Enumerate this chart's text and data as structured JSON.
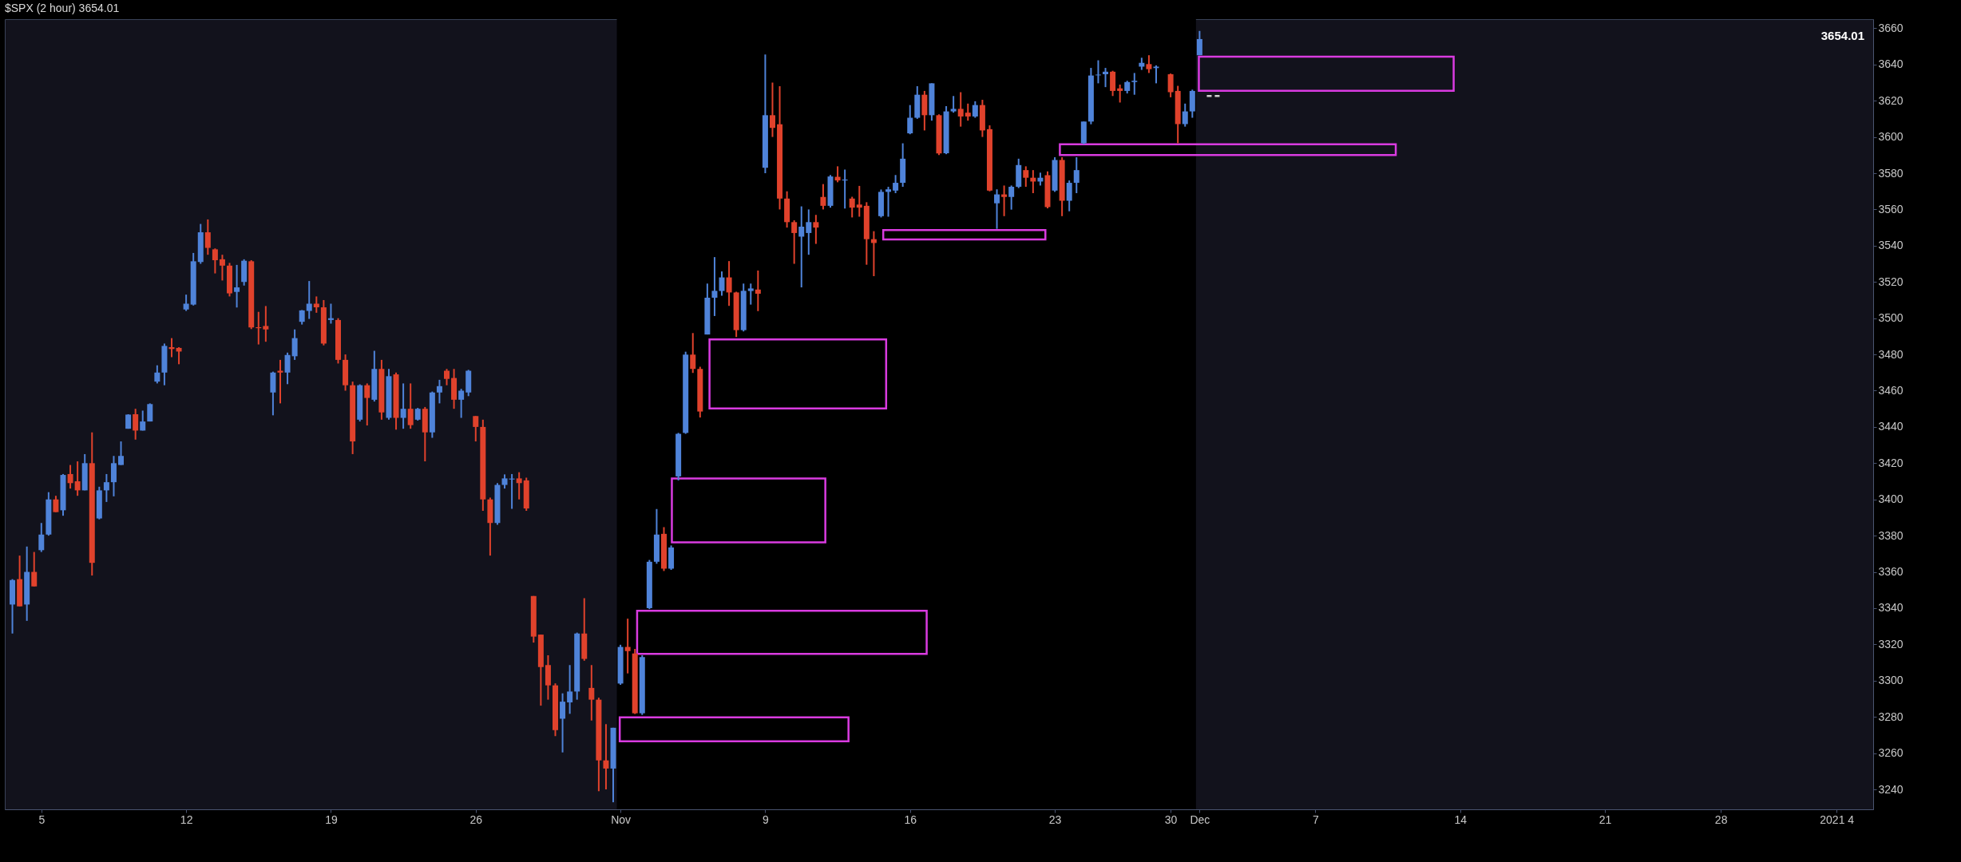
{
  "chart_data": {
    "type": "candlestick",
    "title": "$SPX (2 hour) 3654.01",
    "categories": [
      null,
      null,
      null,
      null,
      "5",
      null,
      null,
      null,
      null,
      null,
      null,
      null,
      null,
      null,
      null,
      null,
      null,
      null,
      null,
      null,
      null,
      null,
      null,
      null,
      "12",
      null,
      null,
      null,
      null,
      null,
      null,
      null,
      null,
      null,
      null,
      null,
      null,
      null,
      null,
      null,
      null,
      null,
      null,
      null,
      "19",
      null,
      null,
      null,
      null,
      null,
      null,
      null,
      null,
      null,
      null,
      null,
      null,
      null,
      null,
      null,
      null,
      null,
      null,
      null,
      "26",
      null,
      null,
      null,
      null,
      null,
      null,
      null,
      null,
      null,
      null,
      null,
      null,
      null,
      null,
      null,
      null,
      null,
      null,
      null,
      "Nov",
      null,
      null,
      null,
      null,
      null,
      null,
      null,
      null,
      null,
      null,
      null,
      null,
      null,
      null,
      null,
      null,
      null,
      null,
      null,
      "9",
      null,
      null,
      null,
      null,
      null,
      null,
      null,
      null,
      null,
      null,
      null,
      null,
      null,
      null,
      null,
      null,
      null,
      null,
      null,
      "16",
      null,
      null,
      null,
      null,
      null,
      null,
      null,
      null,
      null,
      null,
      null,
      null,
      null,
      null,
      null,
      null,
      null,
      null,
      null,
      "23",
      null,
      null,
      null,
      null,
      null,
      null,
      null,
      null,
      null,
      null,
      null,
      null,
      null,
      null,
      null,
      "30",
      null,
      null,
      null,
      "Dec",
      null,
      null,
      null,
      null,
      null,
      null,
      null,
      null,
      null,
      null,
      null,
      null,
      null,
      null,
      null,
      "7",
      null,
      null,
      null,
      null,
      null,
      null,
      null,
      null,
      null,
      null,
      null,
      null,
      null,
      null,
      null,
      null,
      null,
      null,
      null,
      "14",
      null,
      null,
      null,
      null,
      null,
      null,
      null,
      null,
      null,
      null,
      null,
      null,
      null,
      null,
      null,
      null,
      null,
      null,
      null,
      "21",
      null,
      null,
      null,
      null,
      null,
      null,
      null,
      null,
      null,
      null,
      null,
      null,
      null,
      null,
      null,
      "28",
      null,
      null,
      null,
      null,
      null,
      null,
      null,
      null,
      null,
      null,
      null,
      null,
      null,
      null,
      null,
      "2021 4",
      null,
      null,
      null,
      null
    ],
    "ylim": [
      3229,
      3665
    ],
    "yticks": [
      3240,
      3260,
      3280,
      3300,
      3320,
      3340,
      3360,
      3380,
      3400,
      3420,
      3440,
      3460,
      3480,
      3500,
      3520,
      3540,
      3560,
      3580,
      3600,
      3620,
      3640,
      3660
    ],
    "bands": [
      {
        "axis": "x",
        "from": "Nov",
        "to": "Dec",
        "color": "#000000"
      }
    ],
    "annotations": [
      "3654.01"
    ],
    "series": [
      {
        "type": "line",
        "color": "#d0d0d0",
        "line_style": "dashed",
        "values": [
          null,
          null,
          null,
          null,
          null,
          null,
          null,
          null,
          null,
          null,
          null,
          null,
          null,
          null,
          null,
          null,
          null,
          null,
          null,
          null,
          null,
          null,
          null,
          null,
          null,
          null,
          null,
          null,
          null,
          null,
          null,
          null,
          null,
          null,
          null,
          null,
          null,
          null,
          null,
          null,
          null,
          null,
          null,
          null,
          null,
          null,
          null,
          null,
          null,
          null,
          null,
          null,
          null,
          null,
          null,
          null,
          null,
          null,
          null,
          null,
          null,
          null,
          null,
          null,
          null,
          null,
          null,
          null,
          null,
          null,
          null,
          null,
          null,
          null,
          null,
          null,
          null,
          null,
          null,
          null,
          null,
          null,
          null,
          null,
          null,
          null,
          null,
          null,
          null,
          null,
          null,
          null,
          null,
          null,
          null,
          null,
          null,
          null,
          null,
          null,
          null,
          null,
          null,
          null,
          null,
          null,
          null,
          null,
          null,
          null,
          null,
          null,
          null,
          null,
          null,
          null,
          null,
          null,
          null,
          null,
          null,
          null,
          null,
          null,
          null,
          null,
          null,
          null,
          null,
          null,
          null,
          null,
          null,
          null,
          null,
          null,
          null,
          null,
          null,
          null,
          null,
          null,
          null,
          null,
          null,
          null,
          null,
          null,
          null,
          null,
          null,
          null,
          null,
          null,
          null,
          null,
          null,
          null,
          null,
          null,
          null,
          null,
          null,
          null,
          null,
          3622.6,
          3622.6,
          3622.6,
          null,
          null,
          null,
          null,
          null,
          null,
          null,
          null,
          null,
          null,
          null,
          null,
          null,
          null,
          null,
          null,
          null,
          null,
          null,
          null,
          null,
          null,
          null,
          null,
          null,
          null,
          null,
          null,
          null,
          null,
          null,
          null,
          null,
          null,
          null,
          null,
          null,
          null,
          null,
          null,
          null,
          null,
          null,
          null,
          null,
          null,
          null,
          null,
          null,
          null,
          null,
          null,
          null,
          null,
          null,
          null,
          null,
          null,
          null,
          null,
          null,
          null,
          null,
          null,
          null,
          null,
          null,
          null,
          null,
          null,
          null,
          null,
          null,
          null,
          null,
          null,
          null,
          null,
          null,
          null,
          null,
          null,
          null,
          null,
          null,
          null,
          null,
          null,
          null
        ]
      },
      {
        "ohlc": [
          [
            3342,
            3356,
            3326,
            3355.5
          ],
          [
            3356,
            3369,
            3341,
            3341
          ],
          [
            3342,
            3374,
            3333,
            3360
          ],
          [
            3360,
            3371,
            3352,
            3352
          ],
          [
            3372,
            3387,
            3371,
            3380.6
          ],
          [
            3380.6,
            3404,
            3380,
            3400
          ],
          [
            3400,
            3402,
            3393,
            3393
          ],
          [
            3394,
            3414,
            3391,
            3413.5
          ],
          [
            3414,
            3419,
            3406,
            3409
          ],
          [
            3410,
            3421,
            3402,
            3405
          ],
          [
            3405,
            3425,
            3405,
            3420
          ],
          [
            3420,
            3437,
            3358,
            3365
          ],
          [
            3389.5,
            3407,
            3389,
            3405
          ],
          [
            3405,
            3414,
            3398.6,
            3409.5
          ],
          [
            3409.5,
            3424,
            3401.7,
            3420
          ],
          [
            3419,
            3432,
            3419,
            3424
          ],
          [
            3439,
            3447,
            3439,
            3446.8
          ],
          [
            3447,
            3450,
            3433,
            3438
          ],
          [
            3438,
            3449,
            3438,
            3443
          ],
          [
            3443,
            3453,
            3443,
            3452.6
          ],
          [
            3465,
            3474,
            3464,
            3470
          ],
          [
            3470,
            3486,
            3463,
            3484.7
          ],
          [
            3484,
            3489,
            3478.5,
            3483
          ],
          [
            3483.6,
            3484,
            3474.6,
            3481.6
          ],
          [
            3504.8,
            3513,
            3504,
            3508
          ],
          [
            3507.5,
            3536,
            3507,
            3531.4
          ],
          [
            3531,
            3552,
            3530,
            3547.4
          ],
          [
            3547.4,
            3554.5,
            3535,
            3538.8
          ],
          [
            3538,
            3538.5,
            3524.7,
            3532
          ],
          [
            3532.5,
            3535,
            3520.8,
            3529
          ],
          [
            3529,
            3530.5,
            3512,
            3513.7
          ],
          [
            3514.5,
            3529.4,
            3505.9,
            3517
          ],
          [
            3520,
            3532.5,
            3518,
            3531.7
          ],
          [
            3531.4,
            3532,
            3494,
            3494.9
          ],
          [
            3495,
            3503.5,
            3485.5,
            3494.5
          ],
          [
            3495.7,
            3506.7,
            3487,
            3493.8
          ],
          [
            3459,
            3470.5,
            3446.4,
            3470
          ],
          [
            3471,
            3477,
            3453,
            3470
          ],
          [
            3470,
            3481,
            3463.6,
            3479.7
          ],
          [
            3479,
            3493.8,
            3477,
            3489
          ],
          [
            3498,
            3504.5,
            3496.5,
            3504.3
          ],
          [
            3504,
            3520.5,
            3499.6,
            3508
          ],
          [
            3508,
            3512,
            3503,
            3506
          ],
          [
            3506,
            3510,
            3485,
            3486
          ],
          [
            3499,
            3508,
            3497,
            3500
          ],
          [
            3499,
            3500,
            3475,
            3477
          ],
          [
            3477,
            3480,
            3460,
            3463
          ],
          [
            3463,
            3465,
            3425,
            3432
          ],
          [
            3444,
            3463.5,
            3443,
            3463
          ],
          [
            3463,
            3464,
            3440.8,
            3456
          ],
          [
            3455,
            3482,
            3454,
            3472
          ],
          [
            3472,
            3477,
            3444,
            3448
          ],
          [
            3445,
            3472,
            3444,
            3468
          ],
          [
            3469,
            3470,
            3438.5,
            3445
          ],
          [
            3445,
            3464,
            3439,
            3450
          ],
          [
            3450,
            3464,
            3439,
            3441
          ],
          [
            3444,
            3450.5,
            3443.5,
            3450
          ],
          [
            3450,
            3451,
            3421,
            3437
          ],
          [
            3437,
            3459.5,
            3434,
            3459
          ],
          [
            3459,
            3466,
            3453,
            3462.5
          ],
          [
            3471,
            3472,
            3463,
            3466.5
          ],
          [
            3467,
            3472,
            3450,
            3455
          ],
          [
            3455,
            3461,
            3445,
            3460
          ],
          [
            3459,
            3471.5,
            3457,
            3471
          ],
          [
            3446,
            3446,
            3432,
            3440
          ],
          [
            3440,
            3444,
            3393.7,
            3400
          ],
          [
            3400,
            3401,
            3369,
            3387
          ],
          [
            3387,
            3409,
            3386,
            3408
          ],
          [
            3408,
            3413.8,
            3406,
            3411.6
          ],
          [
            3411,
            3414,
            3394.8,
            3411.5
          ],
          [
            3411.6,
            3415,
            3400,
            3409
          ],
          [
            3410.5,
            3412,
            3393.7,
            3395
          ],
          [
            3346.7,
            3346.7,
            3321,
            3324.3
          ],
          [
            3325.4,
            3325.4,
            3286.2,
            3307.5
          ],
          [
            3308.6,
            3314,
            3289.5,
            3297.4
          ],
          [
            3297.4,
            3298.5,
            3269.4,
            3272.7
          ],
          [
            3279,
            3293,
            3260.4,
            3288.4
          ],
          [
            3288,
            3308.6,
            3281.7,
            3294
          ],
          [
            3294,
            3326.5,
            3289.5,
            3326
          ],
          [
            3326,
            3345.5,
            3311,
            3312
          ],
          [
            3296,
            3308.6,
            3278,
            3289.5
          ],
          [
            3289.5,
            3290.6,
            3239,
            3256
          ],
          [
            3256,
            3276,
            3240,
            3251.5
          ],
          [
            3251.5,
            3274,
            3232.9,
            3274
          ],
          [
            3298.4,
            3319.8,
            3297.7,
            3318.6
          ],
          [
            3318.6,
            3334.2,
            3304,
            3316.3
          ],
          [
            3315,
            3317.5,
            3281.6,
            3282
          ],
          [
            3282,
            3314,
            3281.1,
            3313
          ],
          [
            3340,
            3366.6,
            3339.5,
            3365.6
          ],
          [
            3365.6,
            3394.7,
            3364.5,
            3380.6
          ],
          [
            3381,
            3384.7,
            3360.5,
            3361.8
          ],
          [
            3361.8,
            3374.6,
            3361.1,
            3373.5
          ],
          [
            3412.7,
            3436.7,
            3410.5,
            3436.2
          ],
          [
            3436.7,
            3481.5,
            3436.2,
            3479.9
          ],
          [
            3479.9,
            3491.8,
            3469.8,
            3472
          ],
          [
            3472,
            3473.2,
            3445.2,
            3448.5
          ],
          [
            3491,
            3519.1,
            3491,
            3511.3
          ],
          [
            3511.3,
            3533.7,
            3501.2,
            3515.1
          ],
          [
            3515,
            3525.8,
            3512.4,
            3522.5
          ],
          [
            3522.5,
            3531.5,
            3506.8,
            3514.2
          ],
          [
            3514.2,
            3514.6,
            3489.6,
            3493.4
          ],
          [
            3493.4,
            3519.1,
            3492.7,
            3515.1
          ],
          [
            3515,
            3519.1,
            3507.5,
            3516.4
          ],
          [
            3515.8,
            3526.3,
            3503.9,
            3513.5
          ],
          [
            3583,
            3645.5,
            3580,
            3612
          ],
          [
            3612,
            3630,
            3600,
            3605
          ],
          [
            3607,
            3628,
            3560,
            3566
          ],
          [
            3566,
            3570,
            3550,
            3553
          ],
          [
            3553,
            3554,
            3530,
            3547
          ],
          [
            3545,
            3561.7,
            3517,
            3550.5
          ],
          [
            3547,
            3560,
            3535,
            3553
          ],
          [
            3553,
            3557,
            3541,
            3550
          ],
          [
            3566.9,
            3574,
            3560,
            3562
          ],
          [
            3562,
            3579,
            3561,
            3578.2
          ],
          [
            3578,
            3583.8,
            3575,
            3576
          ],
          [
            3576,
            3582,
            3560.5,
            3576.5
          ],
          [
            3566,
            3567,
            3555.6,
            3561
          ],
          [
            3562.7,
            3573,
            3556,
            3561
          ],
          [
            3562,
            3564,
            3529.5,
            3543.6
          ],
          [
            3543.6,
            3548,
            3523.2,
            3541.5
          ],
          [
            3556.3,
            3571,
            3555.6,
            3569.7
          ],
          [
            3569.7,
            3572.5,
            3556,
            3571.1
          ],
          [
            3570.4,
            3579,
            3569,
            3574.7
          ],
          [
            3574.7,
            3596.5,
            3572.5,
            3588
          ],
          [
            3602,
            3617.6,
            3601.5,
            3610.6
          ],
          [
            3610.6,
            3628,
            3610,
            3623.3
          ],
          [
            3623.3,
            3625.4,
            3603.6,
            3612
          ],
          [
            3612,
            3629.6,
            3609,
            3629.6
          ],
          [
            3612,
            3612.5,
            3590,
            3590.9
          ],
          [
            3591,
            3617,
            3590.5,
            3614.1
          ],
          [
            3614.1,
            3622.6,
            3613.4,
            3615.5
          ],
          [
            3615.5,
            3624.7,
            3605.7,
            3611.3
          ],
          [
            3613.4,
            3618.4,
            3609,
            3611.3
          ],
          [
            3611.3,
            3619.7,
            3610.6,
            3617.6
          ],
          [
            3617.6,
            3620.5,
            3600,
            3603.6
          ],
          [
            3604.3,
            3606.4,
            3570,
            3570.4
          ],
          [
            3563.4,
            3571.1,
            3549.3,
            3568.3
          ],
          [
            3568.3,
            3573.2,
            3556.3,
            3566.9
          ],
          [
            3566.9,
            3573.2,
            3559.9,
            3572.5
          ],
          [
            3572.5,
            3588,
            3571.8,
            3584.5
          ],
          [
            3581.7,
            3583.8,
            3572.5,
            3577.5
          ],
          [
            3577.5,
            3581.7,
            3569,
            3575.4
          ],
          [
            3575.4,
            3580.3,
            3573.2,
            3577.5
          ],
          [
            3578.9,
            3581,
            3560.6,
            3561.3
          ],
          [
            3570.4,
            3588.8,
            3569.7,
            3587.3
          ],
          [
            3587.3,
            3588.8,
            3556.3,
            3564.8
          ],
          [
            3564.8,
            3576,
            3559,
            3574.7
          ],
          [
            3574.7,
            3588.8,
            3569,
            3581.7
          ],
          [
            3596.5,
            3608.5,
            3596,
            3608.5
          ],
          [
            3608.5,
            3638.1,
            3607,
            3633.9
          ],
          [
            3634,
            3642.3,
            3629.6,
            3634.4
          ],
          [
            3634.6,
            3638.1,
            3627.5,
            3636
          ],
          [
            3636,
            3636.5,
            3622.6,
            3625.4
          ],
          [
            3626.8,
            3628.9,
            3619,
            3625.4
          ],
          [
            3625.4,
            3631,
            3624,
            3630.3
          ],
          [
            3630.3,
            3635.3,
            3623.3,
            3631
          ],
          [
            3638.8,
            3643.7,
            3637,
            3640.9
          ],
          [
            3640.2,
            3645.1,
            3635.3,
            3637.4
          ],
          [
            3638,
            3639.5,
            3629.6,
            3638.8
          ],
          null,
          [
            3634.6,
            3635,
            3621.9,
            3624.7
          ],
          [
            3625.4,
            3628.2,
            3596.5,
            3607.1
          ],
          [
            3607.1,
            3618.4,
            3605.7,
            3614.1
          ],
          [
            3614.1,
            3626.1,
            3610.6,
            3625.4
          ],
          [
            3645.1,
            3658.5,
            3645.1,
            3654.01
          ],
          null,
          null,
          null,
          null,
          null,
          null,
          null,
          null,
          null,
          null,
          null,
          null,
          null,
          null,
          null,
          null,
          null,
          null,
          null,
          null,
          null,
          null,
          null,
          null,
          null,
          null,
          null,
          null,
          null,
          null,
          null,
          null,
          null,
          null,
          null,
          null,
          null,
          null,
          null,
          null,
          null,
          null,
          null,
          null,
          null,
          null,
          null,
          null,
          null,
          null,
          null,
          null,
          null,
          null,
          null,
          null,
          null,
          null,
          null,
          null,
          null,
          null,
          null,
          null,
          null,
          null,
          null,
          null,
          null,
          null,
          null,
          null,
          null,
          null,
          null,
          null,
          null,
          null,
          null,
          null,
          null,
          null,
          null,
          null,
          null,
          null,
          null,
          null,
          null,
          null,
          null,
          null
        ],
        "colors": [
          "#4f83d9",
          "#e0422c",
          "#4f83d9",
          "#e0422c",
          "#4f83d9",
          "#4f83d9",
          "#e0422c",
          "#4f83d9",
          "#e0422c",
          "#e0422c",
          "#4f83d9",
          "#e0422c",
          "#4f83d9",
          "#4f83d9",
          "#4f83d9",
          "#4f83d9",
          "#4f83d9",
          "#e0422c",
          "#4f83d9",
          "#4f83d9",
          "#4f83d9",
          "#4f83d9",
          "#e0422c",
          "#e0422c",
          "#4f83d9",
          "#4f83d9",
          "#4f83d9",
          "#e0422c",
          "#e0422c",
          "#e0422c",
          "#e0422c",
          "#4f83d9",
          "#4f83d9",
          "#e0422c",
          "#e0422c",
          "#e0422c",
          "#4f83d9",
          "#e0422c",
          "#4f83d9",
          "#4f83d9",
          "#4f83d9",
          "#4f83d9",
          "#e0422c",
          "#e0422c",
          "#4f83d9",
          "#e0422c",
          "#e0422c",
          "#e0422c",
          "#4f83d9",
          "#e0422c",
          "#4f83d9",
          "#e0422c",
          "#4f83d9",
          "#e0422c",
          "#4f83d9",
          "#e0422c",
          "#4f83d9",
          "#e0422c",
          "#4f83d9",
          "#4f83d9",
          "#e0422c",
          "#e0422c",
          "#4f83d9",
          "#4f83d9",
          "#e0422c",
          "#e0422c",
          "#e0422c",
          "#4f83d9",
          "#4f83d9",
          "#4f83d9",
          "#e0422c",
          "#e0422c",
          "#e0422c",
          "#e0422c",
          "#e0422c",
          "#e0422c",
          "#4f83d9",
          "#4f83d9",
          "#4f83d9",
          "#e0422c",
          "#e0422c",
          "#e0422c",
          "#e0422c",
          "#4f83d9",
          "#4f83d9",
          "#e0422c",
          "#e0422c",
          "#4f83d9",
          "#4f83d9",
          "#4f83d9",
          "#e0422c",
          "#4f83d9",
          "#4f83d9",
          "#4f83d9",
          "#e0422c",
          "#e0422c",
          "#4f83d9",
          "#4f83d9",
          "#4f83d9",
          "#e0422c",
          "#e0422c",
          "#4f83d9",
          "#4f83d9",
          "#e0422c",
          "#4f83d9",
          "#e0422c",
          "#e0422c",
          "#e0422c",
          "#e0422c",
          "#4f83d9",
          "#4f83d9",
          "#e0422c",
          "#e0422c",
          "#4f83d9",
          "#e0422c",
          "#4f83d9",
          "#e0422c",
          "#e0422c",
          "#e0422c",
          "#e0422c",
          "#4f83d9",
          "#4f83d9",
          "#4f83d9",
          "#4f83d9",
          "#4f83d9",
          "#4f83d9",
          "#e0422c",
          "#4f83d9",
          "#e0422c",
          "#4f83d9",
          "#4f83d9",
          "#e0422c",
          "#e0422c",
          "#4f83d9",
          "#e0422c",
          "#e0422c",
          "#4f83d9",
          "#e0422c",
          "#4f83d9",
          "#4f83d9",
          "#e0422c",
          "#e0422c",
          "#4f83d9",
          "#e0422c",
          "#4f83d9",
          "#e0422c",
          "#4f83d9",
          "#4f83d9",
          "#4f83d9",
          "#4f83d9",
          "#4f83d9",
          "#4f83d9",
          "#e0422c",
          "#e0422c",
          "#4f83d9",
          "#4f83d9",
          "#4f83d9",
          "#e0422c",
          "#4f83d9",
          null,
          "#e0422c",
          "#e0422c",
          "#4f83d9",
          "#4f83d9",
          "#4f83d9",
          null,
          null,
          null,
          null,
          null,
          null,
          null,
          null,
          null,
          null,
          null,
          null,
          null,
          null,
          null,
          null,
          null,
          null,
          null,
          null,
          null,
          null,
          null,
          null,
          null,
          null,
          null,
          null,
          null,
          null,
          null,
          null,
          null,
          null,
          null,
          null,
          null,
          null,
          null,
          null,
          null,
          null,
          null,
          null,
          null,
          null,
          null,
          null,
          null,
          null,
          null,
          null,
          null,
          null,
          null,
          null,
          null,
          null,
          null,
          null,
          null,
          null,
          null,
          null,
          null,
          null,
          null,
          null,
          null,
          null,
          null,
          null,
          null,
          null,
          null,
          null,
          null,
          null,
          null,
          null,
          null,
          null,
          null,
          null,
          null,
          null,
          null,
          null,
          null,
          null,
          null,
          null
        ]
      }
    ]
  }
}
